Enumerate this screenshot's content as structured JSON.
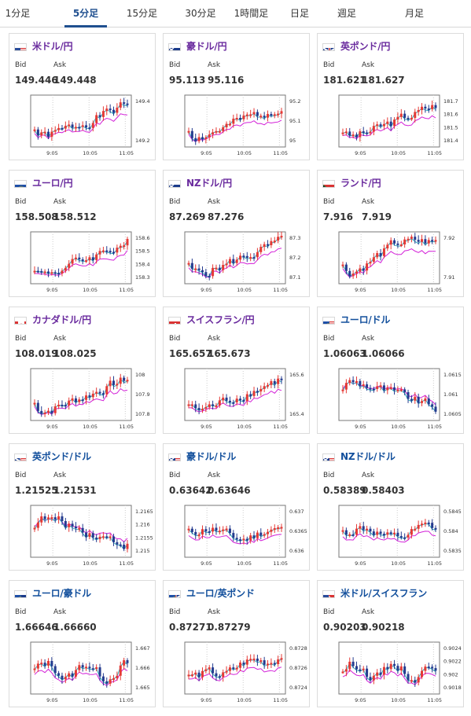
{
  "tabs": [
    {
      "label": "1分足",
      "active": false
    },
    {
      "label": "5分足",
      "active": true
    },
    {
      "label": "15分足",
      "active": false
    },
    {
      "label": "30分足",
      "active": false
    },
    {
      "label": "1時間足",
      "active": false
    },
    {
      "label": "日足",
      "active": false
    },
    {
      "label": "週足",
      "active": false
    },
    {
      "label": "月足",
      "active": false
    }
  ],
  "labels": {
    "bid": "Bid",
    "ask": "Ask"
  },
  "x_ticks": [
    "9:05",
    "10:05",
    "11:05"
  ],
  "colors": {
    "up": "#e53935",
    "down": "#243b8f",
    "ma_short": "#20a8b8",
    "ma_long": "#d321d8",
    "purple_pair": "#6a2b9e",
    "blue_pair": "#124f9c"
  },
  "cards": [
    {
      "pair": "米ドル/円",
      "bid": "149.446",
      "ask": "149.448",
      "flag": "us",
      "color": "purple",
      "yticks": [
        "149.4",
        "149.2"
      ],
      "trend": "up",
      "seed": 1
    },
    {
      "pair": "豪ドル/円",
      "bid": "95.113",
      "ask": "95.116",
      "flag": "au",
      "color": "purple",
      "yticks": [
        "95.2",
        "95.1",
        "95"
      ],
      "trend": "up",
      "seed": 2
    },
    {
      "pair": "英ポンド/円",
      "bid": "181.621",
      "ask": "181.627",
      "flag": "uk",
      "color": "purple",
      "yticks": [
        "181.7",
        "181.6",
        "181.5",
        "181.4"
      ],
      "trend": "up",
      "seed": 3
    },
    {
      "pair": "ユーロ/円",
      "bid": "158.508",
      "ask": "158.512",
      "flag": "eu",
      "color": "purple",
      "yticks": [
        "158.6",
        "158.5",
        "158.4",
        "158.3"
      ],
      "trend": "up",
      "seed": 4
    },
    {
      "pair": "NZドル/円",
      "bid": "87.269",
      "ask": "87.276",
      "flag": "nz",
      "color": "purple",
      "yticks": [
        "87.3",
        "87.2",
        "87.1"
      ],
      "trend": "up",
      "seed": 5
    },
    {
      "pair": "ランド/円",
      "bid": "7.916",
      "ask": "7.919",
      "flag": "za",
      "color": "purple",
      "yticks": [
        "7.92",
        "7.91"
      ],
      "trend": "upflat",
      "seed": 6
    },
    {
      "pair": "カナダドル/円",
      "bid": "108.019",
      "ask": "108.025",
      "flag": "ca",
      "color": "purple",
      "yticks": [
        "108",
        "107.9",
        "107.8"
      ],
      "trend": "up",
      "seed": 7
    },
    {
      "pair": "スイスフラン/円",
      "bid": "165.657",
      "ask": "165.673",
      "flag": "ch",
      "color": "purple",
      "yticks": [
        "165.6",
        "165.4"
      ],
      "trend": "up",
      "seed": 8
    },
    {
      "pair": "ユーロ/ドル",
      "bid": "1.06063",
      "ask": "1.06066",
      "flag": "euus",
      "color": "blue",
      "yticks": [
        "1.0615",
        "1.061",
        "1.0605"
      ],
      "trend": "down",
      "seed": 9
    },
    {
      "pair": "英ポンド/ドル",
      "bid": "1.21525",
      "ask": "1.21531",
      "flag": "ukus",
      "color": "blue",
      "yticks": [
        "1.2165",
        "1.216",
        "1.2155",
        "1.215"
      ],
      "trend": "down",
      "seed": 10
    },
    {
      "pair": "豪ドル/ドル",
      "bid": "0.63642",
      "ask": "0.63646",
      "flag": "auus",
      "color": "blue",
      "yticks": [
        "0.637",
        "0.6365",
        "0.636"
      ],
      "trend": "mixed",
      "seed": 11
    },
    {
      "pair": "NZドル/ドル",
      "bid": "0.58389",
      "ask": "0.58403",
      "flag": "nzus",
      "color": "blue",
      "yticks": [
        "0.5845",
        "0.584",
        "0.5835"
      ],
      "trend": "mixed",
      "seed": 12
    },
    {
      "pair": "ユーロ/豪ドル",
      "bid": "1.66646",
      "ask": "1.66660",
      "flag": "euau",
      "color": "blue",
      "yticks": [
        "1.667",
        "1.666",
        "1.665"
      ],
      "trend": "volatile",
      "seed": 13
    },
    {
      "pair": "ユーロ/英ポンド",
      "bid": "0.87271",
      "ask": "0.87279",
      "flag": "euuk",
      "color": "blue",
      "yticks": [
        "0.8728",
        "0.8726",
        "0.8724"
      ],
      "trend": "upvol",
      "seed": 14
    },
    {
      "pair": "米ドル/スイスフラン",
      "bid": "0.90203",
      "ask": "0.90218",
      "flag": "usch",
      "color": "blue",
      "yticks": [
        "0.9024",
        "0.9022",
        "0.902",
        "0.9018"
      ],
      "trend": "volatile",
      "seed": 15
    }
  ]
}
